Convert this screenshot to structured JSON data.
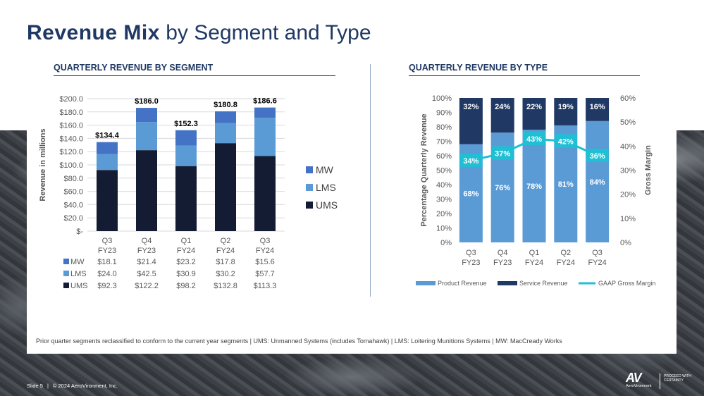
{
  "page": {
    "title_bold": "Revenue Mix",
    "title_rest": " by Segment and Type",
    "footnote": "Prior quarter segments reclassified to conform to the current year segments | UMS: Unmanned Systems (includes Tomahawk)  |  LMS: Loitering Munitions Systems | MW: MacCready Works",
    "footer_slide": "Slide 5",
    "footer_copyright": "© 2024 AeroVironment, Inc.",
    "logo_mark": "AV",
    "logo_brand": "AeroVironment",
    "logo_tagline": "PROCEED WITH CERTAINTY"
  },
  "colors": {
    "navy": "#131c33",
    "mid_blue": "#5b9bd5",
    "slate_blue": "#4472c4",
    "teal": "#1fbfd4",
    "title_navy": "#1f3864"
  },
  "chart_data": [
    {
      "type": "bar",
      "stacked": true,
      "title": "QUARTERLY REVENUE BY SEGMENT",
      "ylabel": "Revenue in millions",
      "xlabel": "",
      "ylim": [
        0,
        200
      ],
      "ytick_values": [
        0,
        20,
        40,
        60,
        80,
        100,
        120,
        140,
        160,
        180,
        200
      ],
      "ytick_labels": [
        "$-",
        "$20.0",
        "$40.0",
        "$60.0",
        "$80.0",
        "$100.0",
        "$120.0",
        "$140.0",
        "$160.0",
        "$180.0",
        "$200.0"
      ],
      "categories": [
        [
          "Q3",
          "FY23"
        ],
        [
          "Q4",
          "FY23"
        ],
        [
          "Q1",
          "FY24"
        ],
        [
          "Q2",
          "FY24"
        ],
        [
          "Q3",
          "FY24"
        ]
      ],
      "totals": [
        "$134.4",
        "$186.0",
        "$152.3",
        "$180.8",
        "$186.6"
      ],
      "series": [
        {
          "name": "UMS",
          "values": [
            92.3,
            122.2,
            98.2,
            132.8,
            113.3
          ],
          "labels": [
            "$92.3",
            "$122.2",
            "$98.2",
            "$132.8",
            "$113.3"
          ],
          "color": "#131c33"
        },
        {
          "name": "LMS",
          "values": [
            24.0,
            42.5,
            30.9,
            30.2,
            57.7
          ],
          "labels": [
            "$24.0",
            "$42.5",
            "$30.9",
            "$30.2",
            "$57.7"
          ],
          "color": "#5b9bd5"
        },
        {
          "name": "MW",
          "values": [
            18.1,
            21.4,
            23.2,
            17.8,
            15.6
          ],
          "labels": [
            "$18.1",
            "$21.4",
            "$23.2",
            "$17.8",
            "$15.6"
          ],
          "color": "#4472c4"
        }
      ],
      "legend": [
        "MW",
        "LMS",
        "UMS"
      ],
      "legend_position": "right",
      "data_table": true
    },
    {
      "type": "bar",
      "stacked": true,
      "title": "QUARTERLY REVENUE BY TYPE",
      "ylabel": "Percentage Quarterly  Revenue",
      "y2label": "Gross Margin",
      "ylim": [
        0,
        100
      ],
      "y2lim": [
        0,
        60
      ],
      "ytick_values": [
        0,
        10,
        20,
        30,
        40,
        50,
        60,
        70,
        80,
        90,
        100
      ],
      "ytick_labels": [
        "0%",
        "10%",
        "20%",
        "30%",
        "40%",
        "50%",
        "60%",
        "70%",
        "80%",
        "90%",
        "100%"
      ],
      "y2tick_values": [
        0,
        10,
        20,
        30,
        40,
        50,
        60
      ],
      "y2tick_labels": [
        "0%",
        "10%",
        "20%",
        "30%",
        "40%",
        "50%",
        "60%"
      ],
      "categories": [
        [
          "Q3",
          "FY23"
        ],
        [
          "Q4",
          "FY23"
        ],
        [
          "Q1",
          "FY24"
        ],
        [
          "Q2",
          "FY24"
        ],
        [
          "Q3",
          "FY24"
        ]
      ],
      "series": [
        {
          "name": "Product Revenue",
          "values": [
            68,
            76,
            78,
            81,
            84
          ],
          "labels": [
            "68%",
            "76%",
            "78%",
            "81%",
            "84%"
          ],
          "color": "#5b9bd5"
        },
        {
          "name": "Service Revenue",
          "values": [
            32,
            24,
            22,
            19,
            16
          ],
          "labels": [
            "32%",
            "24%",
            "22%",
            "19%",
            "16%"
          ],
          "color": "#1f3864"
        }
      ],
      "line": {
        "name": "GAAP Gross Margin",
        "axis": "right",
        "values": [
          34,
          37,
          43,
          42,
          36
        ],
        "labels": [
          "34%",
          "37%",
          "43%",
          "42%",
          "36%"
        ],
        "color": "#1fbfd4"
      },
      "legend": [
        "Product Revenue",
        "Service Revenue",
        "GAAP Gross Margin"
      ],
      "legend_position": "bottom"
    }
  ]
}
